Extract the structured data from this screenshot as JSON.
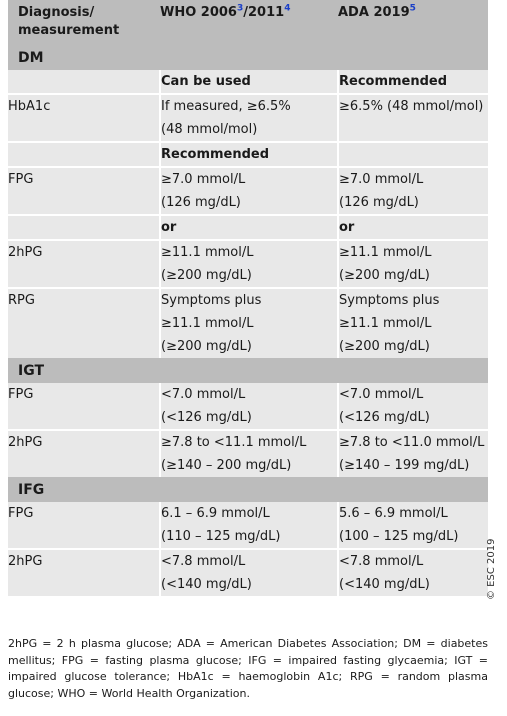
{
  "header": {
    "col1_line1": "Diagnosis/",
    "col1_line2": "measurement",
    "col2": "WHO 2006",
    "col2_ref1": "3",
    "col2_sep": "/2011",
    "col2_ref2": "4",
    "col3": "ADA 2019",
    "col3_ref": "5"
  },
  "dm": {
    "title": "DM",
    "sub1": {
      "who": "Can be used",
      "ada": "Recommended"
    },
    "hba1c": {
      "label": "HbA1c",
      "who_line1_pre": "If measured, ",
      "who_line1_ge": "≥6.5%",
      "who_line2": "(48 mmol/mol)",
      "ada_ge": "≥6.5% (48 mmol/mol)"
    },
    "sub2": {
      "who": "Recommended"
    },
    "fpg": {
      "label": "FPG",
      "who_line1": "≥7.0 mmol/L",
      "who_line2": "(126 mg/dL)",
      "ada_line1": "≥7.0 mmol/L",
      "ada_line2": "(126 mg/dL)"
    },
    "or_who": "or",
    "or_ada": "or",
    "hpg": {
      "label": "2hPG",
      "who_line1": "≥11.1 mmol/L",
      "who_line2": "(≥200 mg/dL)",
      "ada_line1": "≥11.1 mmol/L",
      "ada_line2": "(≥200 mg/dL)"
    },
    "rpg": {
      "label": "RPG",
      "who_line1": "Symptoms plus",
      "who_line2": "≥11.1 mmol/L",
      "who_line3": "(≥200 mg/dL)",
      "ada_line1": "Symptoms plus",
      "ada_line2": "≥11.1 mmol/L",
      "ada_line3": "(≥200 mg/dL)"
    }
  },
  "igt": {
    "title": "IGT",
    "fpg": {
      "label": "FPG",
      "who_line1": "<7.0 mmol/L",
      "who_line2": "(<126 mg/dL)",
      "ada_line1": "<7.0 mmol/L",
      "ada_line2": "(<126 mg/dL)"
    },
    "hpg": {
      "label": "2hPG",
      "who_line1": "≥7.8 to <11.1 mmol/L",
      "who_line2": "(≥140 – 200 mg/dL)",
      "ada_line1": "≥7.8 to <11.0 mmol/L",
      "ada_line2": "(≥140 – 199 mg/dL)"
    }
  },
  "ifg": {
    "title": "IFG",
    "fpg": {
      "label": "FPG",
      "who_line1": "6.1 – 6.9 mmol/L",
      "who_line2": "(110 – 125 mg/dL)",
      "ada_line1": "5.6 – 6.9 mmol/L",
      "ada_line2": "(100 – 125 mg/dL)"
    },
    "hpg": {
      "label": "2hPG",
      "who_line1": "<7.8 mmol/L",
      "who_line2": "(<140 mg/dL)",
      "ada_line1": "<7.8 mmol/L",
      "ada_line2": "(<140 mg/dL)"
    }
  },
  "footnote": "2hPG = 2 h plasma glucose; ADA = American Diabetes Association; DM = diabetes mellitus; FPG = fasting plasma glucose; IFG = impaired fasting glycaemia; IGT = impaired glucose tolerance; HbA1c = haemoglobin A1c; RPG = random plasma glucose; WHO = World Health Organization.",
  "copyright": "© ESC 2019"
}
